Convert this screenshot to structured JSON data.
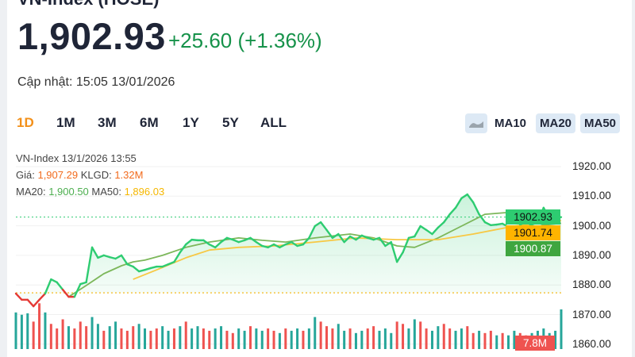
{
  "header": {
    "title": "VN-Index (HOSE)",
    "price": "1,902.93",
    "change": "+25.60",
    "change_pct": "(+1.36%)",
    "updated": "Cập nhật: 15:05 13/01/2026"
  },
  "tabs": [
    {
      "label": "1D",
      "active": true
    },
    {
      "label": "1M"
    },
    {
      "label": "3M"
    },
    {
      "label": "6M"
    },
    {
      "label": "1Y"
    },
    {
      "label": "5Y"
    },
    {
      "label": "ALL"
    }
  ],
  "indicators": {
    "area_icon": "area-chart-icon",
    "ma10": "MA10",
    "ma20": "MA20",
    "ma50": "MA50",
    "ma20_on": true,
    "ma50_on": true,
    "ma10_on": false
  },
  "tooltip": {
    "line1": "VN-Index 13/1/2026 13:55",
    "price_label": "Giá: ",
    "price": "1,907.29",
    "vol_label": " KLGD: ",
    "vol": "1.32M",
    "ma20_label": "MA20: ",
    "ma20": "1,900.50",
    "ma50_label": " MA50: ",
    "ma50": "1,896.03"
  },
  "chart_data": {
    "type": "line",
    "ylim": [
      1860,
      1920
    ],
    "y_ticks": [
      "1920.00",
      "1910.00",
      "1900.00",
      "1890.00",
      "1880.00",
      "1870.00",
      "1860.00"
    ],
    "reference": 1877.33,
    "last_price_label": "1902.93",
    "ma50_label": "1901.74",
    "ma20_label": "1900.87",
    "volume_label": "7.8M",
    "colors": {
      "up": "#2ecc71",
      "down": "#e53935",
      "ma20": "#7cb75a",
      "ma50": "#f7c844",
      "ref": "#f5c542"
    },
    "price": [
      1877.1,
      1875.0,
      1875.0,
      1872.8,
      1875.0,
      1877.1,
      1881.9,
      1880.9,
      1878.4,
      1876.0,
      1876.0,
      1880.3,
      1880.9,
      1892.7,
      1889.2,
      1890.0,
      1889.4,
      1888.9,
      1890.0,
      1887.0,
      1886.2,
      1884.6,
      1885.1,
      1885.7,
      1886.2,
      1886.2,
      1887.0,
      1887.8,
      1891.0,
      1893.7,
      1895.3,
      1895.1,
      1895.1,
      1893.7,
      1892.7,
      1894.5,
      1895.9,
      1895.3,
      1894.5,
      1895.1,
      1895.9,
      1894.5,
      1893.2,
      1892.7,
      1893.7,
      1892.7,
      1893.7,
      1894.5,
      1893.2,
      1893.7,
      1895.9,
      1899.9,
      1901.2,
      1898.6,
      1895.9,
      1897.2,
      1894.5,
      1896.4,
      1895.3,
      1896.7,
      1895.9,
      1895.3,
      1895.9,
      1893.2,
      1894.5,
      1887.8,
      1891.0,
      1895.9,
      1896.4,
      1899.9,
      1898.6,
      1897.2,
      1899.4,
      1901.2,
      1903.9,
      1906.1,
      1909.3,
      1910.6,
      1907.9,
      1903.9,
      1901.2,
      1900.2,
      1900.4,
      1900.7,
      1899.6,
      1898.0,
      1900.2,
      1899.4,
      1900.4,
      1901.2,
      1906.1,
      1902.6,
      1902.9,
      1902.93
    ],
    "ma20": [
      [
        9,
        1876.0
      ],
      [
        12,
        1879.8
      ],
      [
        15,
        1883.8
      ],
      [
        18,
        1886.5
      ],
      [
        20,
        1887.8
      ],
      [
        22,
        1888.4
      ],
      [
        25,
        1890.0
      ],
      [
        29,
        1892.7
      ],
      [
        33,
        1894.5
      ],
      [
        38,
        1895.9
      ],
      [
        42,
        1895.1
      ],
      [
        46,
        1894.5
      ],
      [
        51,
        1895.9
      ],
      [
        57,
        1897.2
      ],
      [
        61,
        1895.9
      ],
      [
        65,
        1893.2
      ],
      [
        68,
        1892.7
      ],
      [
        72,
        1895.9
      ],
      [
        76,
        1899.9
      ],
      [
        80,
        1903.9
      ],
      [
        84,
        1904.5
      ],
      [
        86,
        1903.9
      ],
      [
        90,
        1900.2
      ],
      [
        93,
        1900.87
      ]
    ],
    "ma50": [
      [
        20,
        1881.9
      ],
      [
        24,
        1885.1
      ],
      [
        29,
        1889.2
      ],
      [
        33,
        1891.8
      ],
      [
        38,
        1892.7
      ],
      [
        44,
        1893.2
      ],
      [
        51,
        1894.5
      ],
      [
        58,
        1895.9
      ],
      [
        65,
        1895.3
      ],
      [
        72,
        1895.3
      ],
      [
        78,
        1897.2
      ],
      [
        85,
        1899.9
      ],
      [
        92,
        1901.5
      ],
      [
        93,
        1901.74
      ]
    ],
    "volume_m": [
      1.6,
      2.4,
      2.5,
      1.2,
      2.0,
      1.6,
      1.1,
      0.9,
      1.3,
      1.0,
      0.9,
      1.2,
      1.0,
      1.4,
      1.1,
      0.8,
      1.0,
      1.2,
      0.9,
      0.8,
      1.0,
      1.1,
      0.9,
      0.8,
      0.9,
      1.0,
      0.8,
      0.9,
      1.0,
      1.2,
      0.9,
      1.0,
      0.9,
      0.8,
      0.9,
      1.0,
      0.8,
      0.7,
      0.9,
      0.8,
      1.0,
      0.9,
      0.8,
      0.9,
      0.8,
      0.7,
      0.9,
      0.8,
      0.9,
      0.8,
      0.9,
      1.4,
      1.2,
      1.0,
      0.9,
      1.1,
      0.8,
      0.9,
      0.7,
      0.8,
      0.9,
      1.0,
      0.8,
      0.9,
      0.7,
      1.2,
      1.1,
      0.9,
      1.3,
      1.2,
      0.9,
      0.8,
      1.0,
      1.1,
      0.9,
      0.8,
      0.9,
      1.0,
      0.7,
      0.8,
      0.7,
      0.8,
      0.6,
      0.7,
      0.6,
      0.8,
      0.7,
      0.6,
      0.7,
      0.8,
      0.9,
      0.7,
      0.8,
      7.8
    ],
    "volume_dir": "uuudduddduddduuduuddduudduududuudduudduuduudduduuduuddduuduudduuudduudduudduuddudduduudduuu"
  }
}
